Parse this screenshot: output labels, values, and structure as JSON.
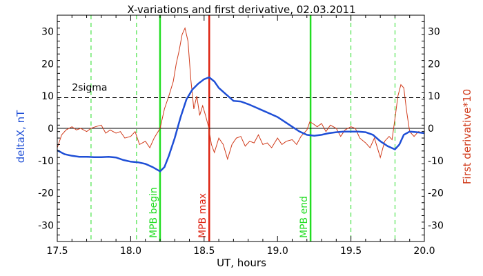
{
  "chart_data": {
    "type": "line",
    "title": "X-variations and first derivative, 02.03.2011",
    "xlabel": "UT, hours",
    "ylabel_left": "deltaX, nT",
    "ylabel_right": "First derivative*10",
    "xlim": [
      17.5,
      20.0
    ],
    "ylim": [
      -35,
      35
    ],
    "x_ticks": [
      "17.5",
      "18.0",
      "18.5",
      "19.0",
      "19.5",
      "20.0"
    ],
    "y_ticks": [
      "30",
      "20",
      "10",
      "0",
      "-10",
      "-20",
      "-30"
    ],
    "grid": false,
    "colors": {
      "deltaX": "#1f4fd6",
      "derivative": "#d03a1a",
      "mpb_lines": "#22dd22",
      "mpb_max_line": "#dd2211",
      "sigma_line": "#000000",
      "zero_line": "#000000"
    },
    "sigma": {
      "label": "2sigma",
      "value": 9.5
    },
    "vertical_markers": [
      {
        "x": 18.2,
        "label": "MPB begin",
        "style": "solid",
        "color": "#22dd22"
      },
      {
        "x": 18.535,
        "label": "MPB max",
        "style": "solid",
        "color": "#dd2211"
      },
      {
        "x": 19.225,
        "label": "MPB end",
        "style": "solid",
        "color": "#22dd22"
      },
      {
        "x": 17.73,
        "label": "",
        "style": "dashed",
        "color": "#22dd22"
      },
      {
        "x": 18.04,
        "label": "",
        "style": "dashed",
        "color": "#22dd22"
      },
      {
        "x": 19.5,
        "label": "",
        "style": "dashed",
        "color": "#22dd22"
      },
      {
        "x": 19.8,
        "label": "",
        "style": "dashed",
        "color": "#22dd22"
      }
    ],
    "series": [
      {
        "x": [
          17.5,
          17.55,
          17.6,
          17.65,
          17.7,
          17.75,
          17.8,
          17.85,
          17.9,
          17.95,
          18.0,
          18.05,
          18.1,
          18.15,
          18.2,
          18.23,
          18.26,
          18.3,
          18.34,
          18.38,
          18.42,
          18.46,
          18.5,
          18.535,
          18.57,
          18.6,
          18.65,
          18.7,
          18.75,
          18.8,
          18.85,
          18.9,
          18.95,
          19.0,
          19.05,
          19.1,
          19.15,
          19.2,
          19.25,
          19.3,
          19.35,
          19.4,
          19.45,
          19.5,
          19.55,
          19.6,
          19.65,
          19.7,
          19.75,
          19.8,
          19.83,
          19.86,
          19.9,
          19.95,
          20.0
        ],
        "values": [
          -6.8,
          -8.0,
          -8.5,
          -8.8,
          -8.8,
          -8.9,
          -8.9,
          -8.8,
          -9.0,
          -9.8,
          -10.3,
          -10.5,
          -11.0,
          -12.0,
          -13.3,
          -12.0,
          -8.5,
          -3.0,
          3.5,
          9.0,
          12.0,
          13.8,
          15.2,
          15.8,
          14.5,
          12.5,
          10.5,
          8.5,
          8.3,
          7.5,
          6.5,
          5.5,
          4.5,
          3.5,
          2.0,
          0.5,
          -1.0,
          -2.0,
          -2.3,
          -2.0,
          -1.5,
          -1.2,
          -1.0,
          -1.0,
          -1.0,
          -1.2,
          -2.0,
          -4.0,
          -5.5,
          -6.5,
          -5.0,
          -2.0,
          -1.0,
          -1.2,
          -1.5
        ]
      },
      {
        "x": [
          17.5,
          17.53,
          17.56,
          17.6,
          17.63,
          17.66,
          17.7,
          17.73,
          17.76,
          17.8,
          17.83,
          17.86,
          17.9,
          17.93,
          17.96,
          18.0,
          18.03,
          18.06,
          18.1,
          18.13,
          18.16,
          18.2,
          18.23,
          18.26,
          18.29,
          18.31,
          18.33,
          18.35,
          18.37,
          18.39,
          18.41,
          18.43,
          18.45,
          18.47,
          18.49,
          18.51,
          18.53,
          18.55,
          18.57,
          18.6,
          18.63,
          18.66,
          18.69,
          18.72,
          18.75,
          18.78,
          18.81,
          18.84,
          18.87,
          18.9,
          18.93,
          18.96,
          19.0,
          19.03,
          19.06,
          19.1,
          19.13,
          19.16,
          19.2,
          19.22,
          19.24,
          19.27,
          19.3,
          19.33,
          19.36,
          19.4,
          19.43,
          19.46,
          19.5,
          19.53,
          19.56,
          19.6,
          19.63,
          19.66,
          19.7,
          19.73,
          19.76,
          19.78,
          19.8,
          19.82,
          19.84,
          19.86,
          19.88,
          19.9,
          19.93,
          19.96,
          20.0
        ],
        "values": [
          -6.0,
          -2.0,
          -0.5,
          0.5,
          -0.5,
          0.0,
          -1.0,
          0.0,
          0.5,
          1.0,
          -1.5,
          -0.5,
          -1.5,
          -1.0,
          -3.0,
          -2.5,
          -1.0,
          -5.0,
          -4.0,
          -6.0,
          -3.0,
          0.0,
          6.0,
          10.0,
          14.5,
          20.0,
          24.0,
          29.0,
          31.0,
          27.0,
          15.0,
          6.0,
          10.0,
          4.0,
          7.0,
          4.0,
          0.5,
          -5.0,
          -7.5,
          -3.0,
          -5.0,
          -9.5,
          -5.0,
          -3.0,
          -2.5,
          -5.5,
          -4.0,
          -4.5,
          -2.0,
          -5.0,
          -4.5,
          -6.0,
          -3.0,
          -5.0,
          -4.0,
          -3.5,
          -5.0,
          -2.5,
          -0.5,
          2.0,
          1.5,
          0.5,
          1.5,
          -1.0,
          1.0,
          0.0,
          -2.5,
          -0.5,
          0.5,
          0.0,
          -3.0,
          -4.5,
          -6.0,
          -3.0,
          -9.0,
          -4.0,
          -2.5,
          -3.5,
          3.0,
          10.0,
          13.5,
          12.5,
          5.0,
          -1.0,
          -2.5,
          -1.0,
          -1.5
        ]
      }
    ]
  }
}
